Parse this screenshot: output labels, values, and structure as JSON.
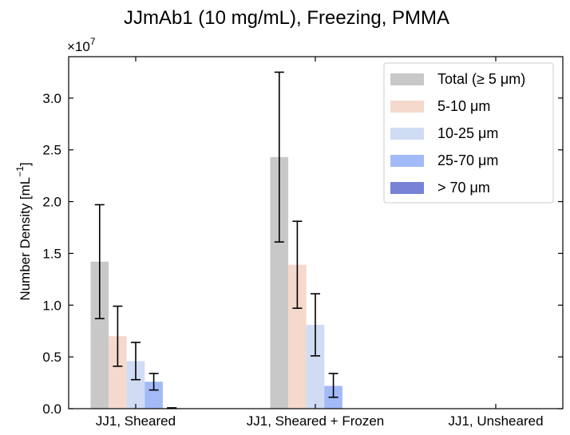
{
  "chart_data": {
    "type": "bar",
    "title": "JJmAb1 (10 mg/mL), Freezing, PMMA",
    "ylabel_main": "Number Density [mL",
    "ylabel_exp": "−1",
    "ylabel_close": "]",
    "multiplier_base": "×10",
    "multiplier_exp": "7",
    "ylim": [
      0,
      3.4
    ],
    "yticks": [
      0.0,
      0.5,
      1.0,
      1.5,
      2.0,
      2.5,
      3.0
    ],
    "ytick_labels": [
      "0.0",
      "0.5",
      "1.0",
      "1.5",
      "2.0",
      "2.5",
      "3.0"
    ],
    "categories": [
      "JJ1, Sheared",
      "JJ1, Sheared + Frozen",
      "JJ1, Unsheared"
    ],
    "legend_position": "top-right",
    "series": [
      {
        "name": "Total (≥  5 μm)",
        "color": "#c8c8c8",
        "values": [
          1.42,
          2.43,
          0.0
        ],
        "err_low": [
          0.55,
          0.82,
          0.0
        ],
        "err_high": [
          0.55,
          0.82,
          0.0
        ]
      },
      {
        "name": "5-10 μm",
        "color": "#f4d9cc",
        "values": [
          0.7,
          1.39,
          0.0
        ],
        "err_low": [
          0.29,
          0.42,
          0.0
        ],
        "err_high": [
          0.29,
          0.42,
          0.0
        ]
      },
      {
        "name": "10-25 μm",
        "color": "#cfdcf4",
        "values": [
          0.46,
          0.81,
          0.0
        ],
        "err_low": [
          0.18,
          0.3,
          0.0
        ],
        "err_high": [
          0.18,
          0.3,
          0.0
        ]
      },
      {
        "name": "25-70 μm",
        "color": "#a2baf7",
        "values": [
          0.26,
          0.22,
          0.0
        ],
        "err_low": [
          0.08,
          0.11,
          0.0
        ],
        "err_high": [
          0.08,
          0.12,
          0.0
        ]
      },
      {
        "name": "> 70 μm",
        "color": "#7783d6",
        "values": [
          0.005,
          0.0,
          0.0
        ],
        "err_low": [
          0.003,
          0.0,
          0.0
        ],
        "err_high": [
          0.003,
          0.0,
          0.0
        ]
      }
    ]
  }
}
